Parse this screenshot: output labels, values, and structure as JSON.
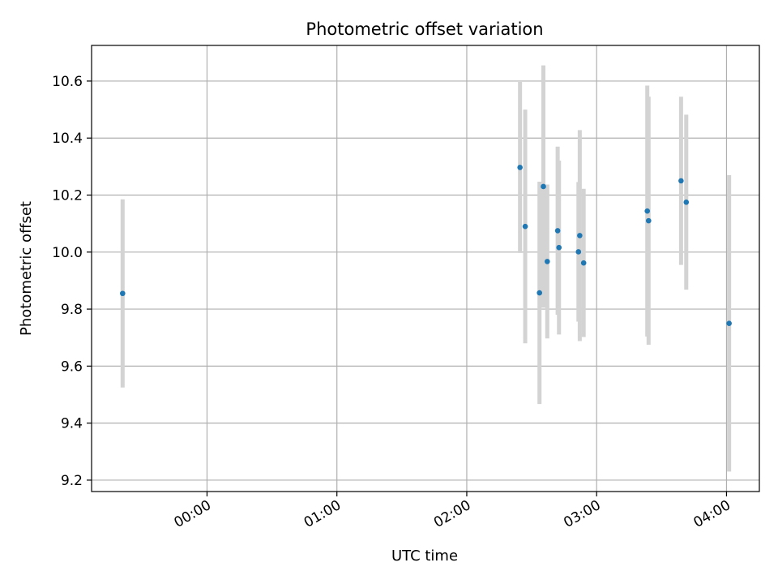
{
  "chart_data": {
    "type": "scatter",
    "title": "Photometric offset variation",
    "xlabel": "UTC time",
    "ylabel": "Photometric offset",
    "x_unit": "hours",
    "x_ticks": [
      {
        "value": 0,
        "label": "00:00"
      },
      {
        "value": 1,
        "label": "01:00"
      },
      {
        "value": 2,
        "label": "02:00"
      },
      {
        "value": 3,
        "label": "03:00"
      },
      {
        "value": 4,
        "label": "04:00"
      }
    ],
    "y_ticks": [
      {
        "value": 9.2,
        "label": "9.2"
      },
      {
        "value": 9.4,
        "label": "9.4"
      },
      {
        "value": 9.6,
        "label": "9.6"
      },
      {
        "value": 9.8,
        "label": "9.8"
      },
      {
        "value": 10.0,
        "label": "10.0"
      },
      {
        "value": 10.2,
        "label": "10.2"
      },
      {
        "value": 10.4,
        "label": "10.4"
      },
      {
        "value": 10.6,
        "label": "10.6"
      }
    ],
    "xlim": [
      -0.889,
      4.253
    ],
    "ylim": [
      9.16,
      10.725
    ],
    "grid": true,
    "point_color": "#1f77b4",
    "errorbar_color": "#d3d3d3",
    "points": [
      {
        "x": -0.65,
        "y": 9.855,
        "err": 0.33
      },
      {
        "x": 2.41,
        "y": 10.297,
        "err": 0.3
      },
      {
        "x": 2.45,
        "y": 10.09,
        "err": 0.41
      },
      {
        "x": 2.56,
        "y": 9.857,
        "err": 0.39
      },
      {
        "x": 2.59,
        "y": 10.23,
        "err": 0.425
      },
      {
        "x": 2.62,
        "y": 9.967,
        "err": 0.27
      },
      {
        "x": 2.7,
        "y": 10.075,
        "err": 0.295
      },
      {
        "x": 2.71,
        "y": 10.016,
        "err": 0.305
      },
      {
        "x": 2.86,
        "y": 10.001,
        "err": 0.245
      },
      {
        "x": 2.87,
        "y": 10.058,
        "err": 0.37
      },
      {
        "x": 2.9,
        "y": 9.962,
        "err": 0.26
      },
      {
        "x": 3.39,
        "y": 10.144,
        "err": 0.44
      },
      {
        "x": 3.4,
        "y": 10.11,
        "err": 0.435
      },
      {
        "x": 3.65,
        "y": 10.25,
        "err": 0.295
      },
      {
        "x": 3.69,
        "y": 10.175,
        "err": 0.307
      },
      {
        "x": 4.02,
        "y": 9.75,
        "err": 0.52
      }
    ]
  }
}
